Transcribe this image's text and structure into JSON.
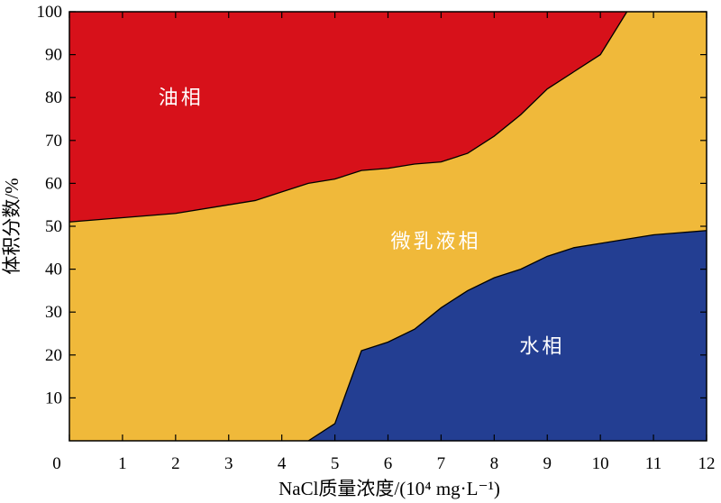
{
  "chart_data": {
    "type": "area",
    "xlabel": "NaCl质量浓度/(10⁴ mg·L⁻¹)",
    "ylabel": "体积分数/%",
    "xlim": [
      0,
      12
    ],
    "ylim": [
      0,
      100
    ],
    "x_ticks": [
      "0",
      "1",
      "2",
      "3",
      "4",
      "5",
      "6",
      "7",
      "8",
      "9",
      "10",
      "11",
      "12"
    ],
    "y_ticks": [
      "10",
      "20",
      "30",
      "40",
      "50",
      "60",
      "70",
      "80",
      "90",
      "100"
    ],
    "grid": false,
    "regions": [
      {
        "name": "油相",
        "color": "#d7111a"
      },
      {
        "name": "微乳液相",
        "color": "#f0b93a"
      },
      {
        "name": "水相",
        "color": "#233e92"
      }
    ],
    "boundaries": {
      "water_upper": {
        "x": [
          4.5,
          5.0,
          5.5,
          6.0,
          6.5,
          7.0,
          7.5,
          8.0,
          8.5,
          9.0,
          9.5,
          10.0,
          10.5,
          11.0,
          11.5,
          12.0
        ],
        "y": [
          0,
          4,
          21,
          23,
          26,
          31,
          35,
          38,
          40,
          43,
          45,
          46,
          47,
          48,
          48.5,
          49
        ]
      },
      "oil_lower": {
        "x": [
          0,
          1,
          2,
          3,
          3.5,
          4,
          4.5,
          5,
          5.5,
          6,
          6.5,
          7,
          7.5,
          8,
          8.5,
          9,
          9.5,
          10,
          10.5
        ],
        "y": [
          51,
          52,
          53,
          55,
          56,
          58,
          60,
          61,
          63,
          63.5,
          64.5,
          65,
          67,
          71,
          76,
          82,
          86,
          90,
          100
        ]
      }
    }
  }
}
